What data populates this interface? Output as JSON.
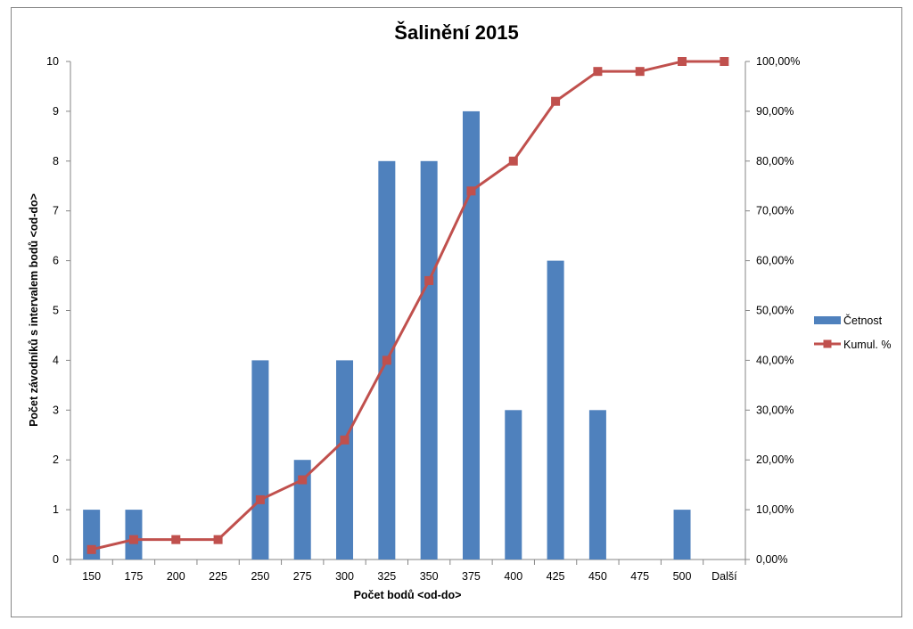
{
  "chart_data": {
    "type": "bar",
    "title": "Šalinění 2015",
    "xlabel": "Počet bodů <od-do>",
    "ylabel": "Počet závodníků s intervalem bodů <od-do>",
    "categories": [
      "150",
      "175",
      "200",
      "225",
      "250",
      "275",
      "300",
      "325",
      "350",
      "375",
      "400",
      "425",
      "450",
      "475",
      "500",
      "Další"
    ],
    "ylim": [
      0,
      10
    ],
    "y2lim": [
      0,
      1
    ],
    "yticks": [
      "0",
      "1",
      "2",
      "3",
      "4",
      "5",
      "6",
      "7",
      "8",
      "9",
      "10"
    ],
    "y2ticks": [
      "0,00%",
      "10,00%",
      "20,00%",
      "30,00%",
      "40,00%",
      "50,00%",
      "60,00%",
      "70,00%",
      "80,00%",
      "90,00%",
      "100,00%"
    ],
    "legend_position": "right",
    "grid": false,
    "series": [
      {
        "name": "Četnost",
        "type": "bar",
        "axis": "left",
        "color": "#4f81bd",
        "values": [
          1,
          1,
          0,
          0,
          4,
          2,
          4,
          8,
          8,
          9,
          3,
          6,
          3,
          0,
          1,
          0
        ]
      },
      {
        "name": "Kumul. %",
        "type": "line",
        "axis": "right",
        "color": "#c0504d",
        "values": [
          0.02,
          0.04,
          0.04,
          0.04,
          0.12,
          0.16,
          0.24,
          0.4,
          0.56,
          0.74,
          0.8,
          0.92,
          0.98,
          0.98,
          1.0,
          1.0
        ]
      }
    ]
  }
}
